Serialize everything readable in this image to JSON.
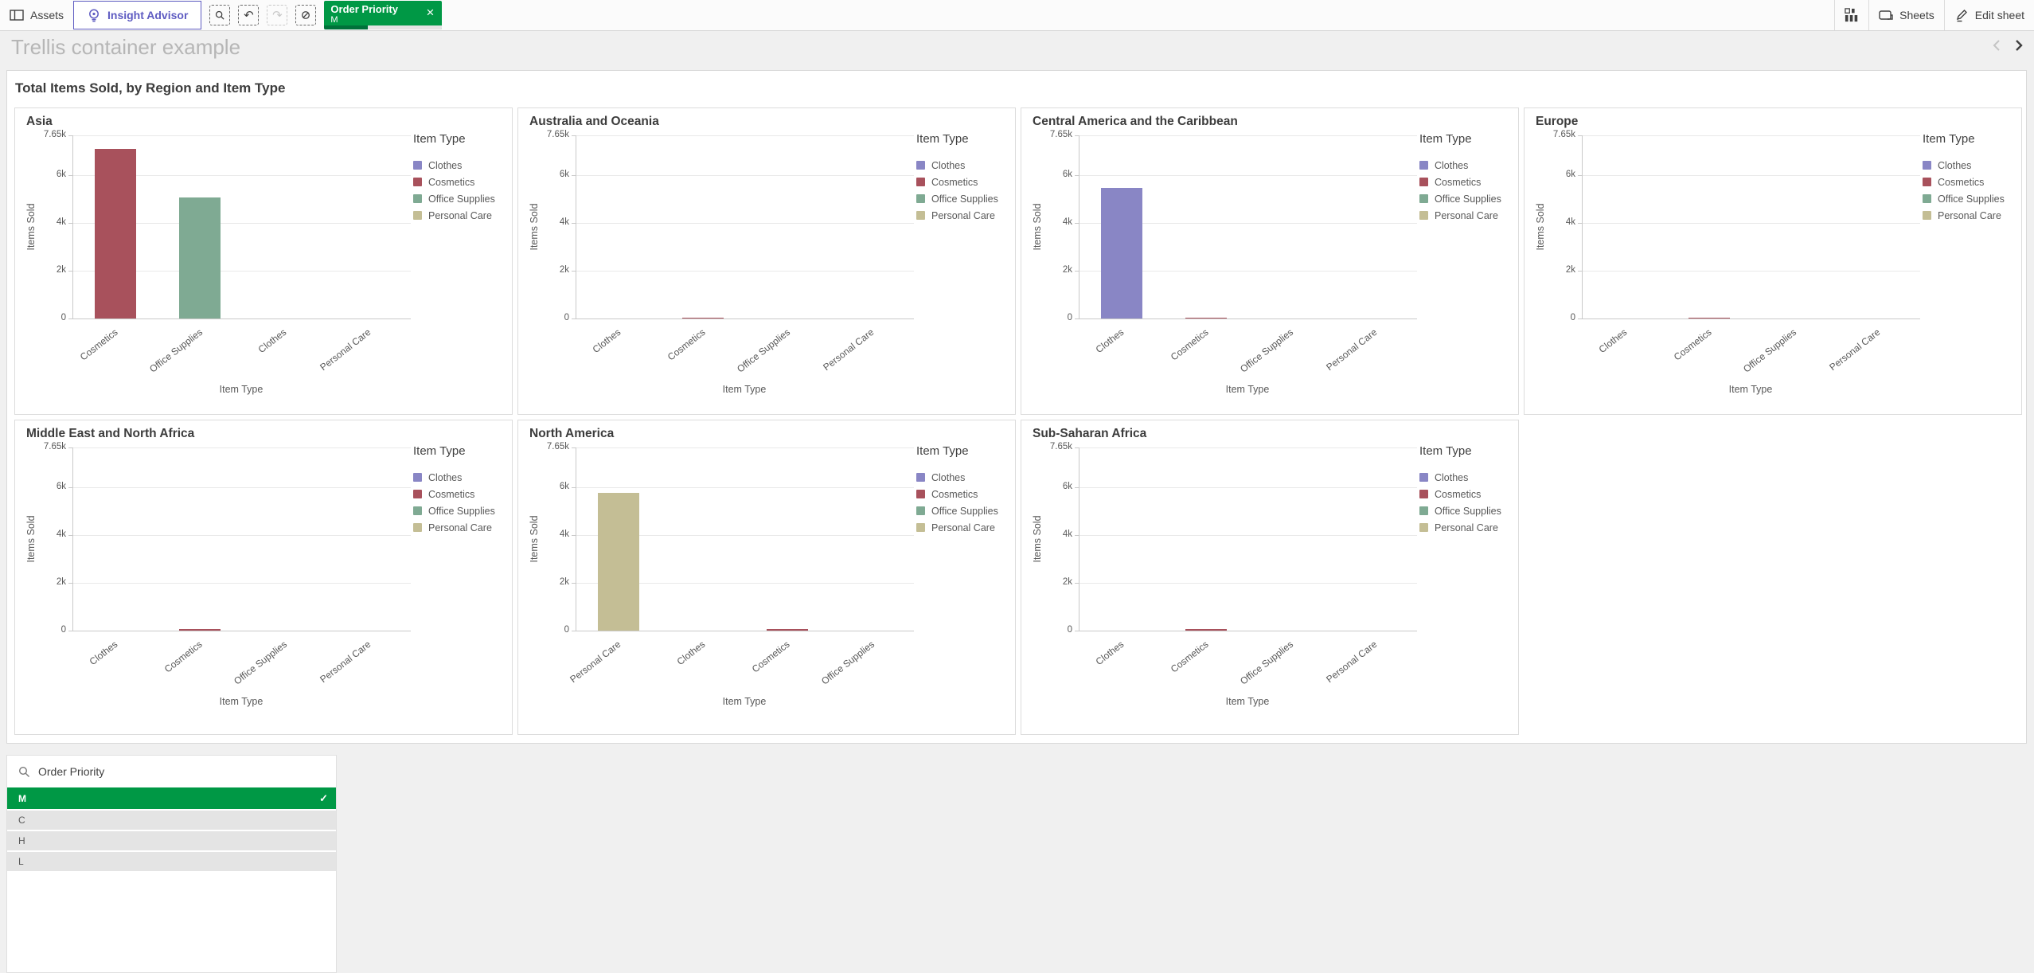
{
  "toolbar": {
    "assets_label": "Assets",
    "insight_advisor_label": "Insight Advisor",
    "selection_chip": {
      "field": "Order Priority",
      "value": "M"
    },
    "sheets_label": "Sheets",
    "edit_sheet_label": "Edit sheet"
  },
  "sheet": {
    "title": "Trellis container example"
  },
  "container": {
    "title": "Total Items Sold, by Region and Item Type"
  },
  "chart_data": {
    "type": "bar",
    "title": "Total Items Sold, by Region and Item Type",
    "xlabel": "Item Type",
    "ylabel": "Items Sold",
    "ylim": [
      0,
      7650
    ],
    "grid": true,
    "legend_title": "Item Type",
    "legend_position": "right",
    "yticks": [
      {
        "label": "0",
        "value": 0
      },
      {
        "label": "2k",
        "value": 2000
      },
      {
        "label": "4k",
        "value": 4000
      },
      {
        "label": "6k",
        "value": 6000
      },
      {
        "label": "7.65k",
        "value": 7650
      }
    ],
    "legend_items": [
      "Clothes",
      "Cosmetics",
      "Office Supplies",
      "Personal Care"
    ],
    "item_colors": {
      "Clothes": "#8986c5",
      "Cosmetics": "#a8515c",
      "Office Supplies": "#7faa93",
      "Personal Care": "#c4be95"
    },
    "charts": [
      {
        "region": "Asia",
        "categories": [
          "Cosmetics",
          "Office Supplies",
          "Clothes",
          "Personal Care"
        ],
        "values": [
          7100,
          5050,
          0,
          0
        ]
      },
      {
        "region": "Australia and Oceania",
        "categories": [
          "Clothes",
          "Cosmetics",
          "Office Supplies",
          "Personal Care"
        ],
        "values": [
          0,
          40,
          0,
          0
        ]
      },
      {
        "region": "Central America and the Caribbean",
        "categories": [
          "Clothes",
          "Cosmetics",
          "Office Supplies",
          "Personal Care"
        ],
        "values": [
          5450,
          40,
          0,
          0
        ]
      },
      {
        "region": "Europe",
        "categories": [
          "Clothes",
          "Cosmetics",
          "Office Supplies",
          "Personal Care"
        ],
        "values": [
          0,
          40,
          0,
          0
        ]
      },
      {
        "region": "Middle East and North Africa",
        "categories": [
          "Clothes",
          "Cosmetics",
          "Office Supplies",
          "Personal Care"
        ],
        "values": [
          0,
          50,
          0,
          0
        ]
      },
      {
        "region": "North America",
        "categories": [
          "Personal Care",
          "Clothes",
          "Cosmetics",
          "Office Supplies"
        ],
        "values": [
          5750,
          0,
          50,
          0
        ]
      },
      {
        "region": "Sub-Saharan Africa",
        "categories": [
          "Clothes",
          "Cosmetics",
          "Office Supplies",
          "Personal Care"
        ],
        "values": [
          0,
          50,
          0,
          0
        ]
      }
    ]
  },
  "listbox": {
    "title": "Order Priority",
    "items": [
      {
        "label": "M",
        "state": "selected"
      },
      {
        "label": "C",
        "state": "possible"
      },
      {
        "label": "H",
        "state": "possible"
      },
      {
        "label": "L",
        "state": "possible"
      }
    ]
  },
  "icons": {
    "undo": "↶",
    "redo": "↷",
    "close": "×",
    "checkmark": "✓"
  },
  "colors": {
    "accent_green": "#009845",
    "accent_green_dark": "#00713a",
    "insight_purple": "#5f5cc2",
    "clothes": "#8986c5",
    "cosmetics": "#a8515c",
    "office_supplies": "#7faa93",
    "personal_care": "#c4be95"
  }
}
